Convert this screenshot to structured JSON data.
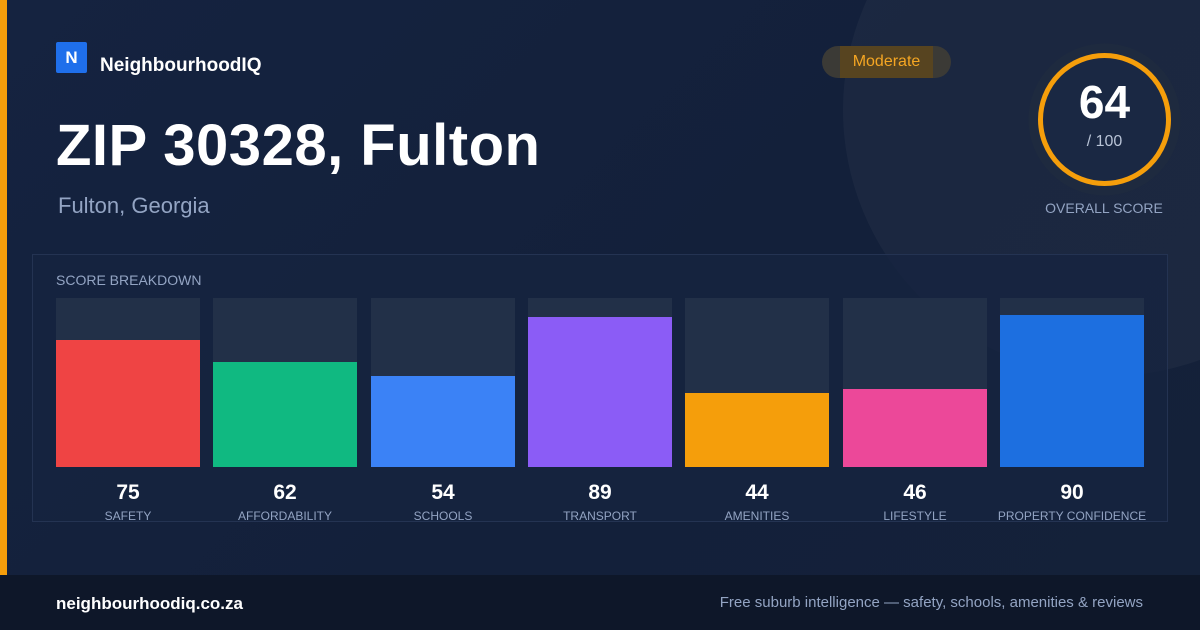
{
  "brand": {
    "logo_letter": "N",
    "name": "NeighbourhoodIQ",
    "color": "#1f6feb"
  },
  "badge": {
    "label": "Moderate",
    "color": "#f5a623"
  },
  "header": {
    "title": "ZIP 30328, Fulton",
    "subtitle": "Fulton, Georgia"
  },
  "overall_score": {
    "value": "64",
    "max_label": "/ 100",
    "label": "OVERALL SCORE",
    "fraction": 0.64,
    "ring_color": "#f59e0b"
  },
  "breakdown": {
    "title": "SCORE BREAKDOWN"
  },
  "chart_data": {
    "type": "bar",
    "title": "SCORE BREAKDOWN",
    "categories": [
      "SAFETY",
      "AFFORDABILITY",
      "SCHOOLS",
      "TRANSPORT",
      "AMENITIES",
      "LIFESTYLE",
      "PROPERTY CONFIDENCE"
    ],
    "values": [
      75,
      62,
      54,
      89,
      44,
      46,
      90
    ],
    "colors": [
      "#ef4444",
      "#10b981",
      "#3b82f6",
      "#8b5cf6",
      "#f59e0b",
      "#ec4899",
      "#1d6fe0"
    ],
    "ylim": [
      0,
      100
    ],
    "grid": false
  },
  "footer": {
    "url": "neighbourhoodiq.co.za",
    "tagline": "Free suburb intelligence — safety, schools, amenities & reviews"
  }
}
